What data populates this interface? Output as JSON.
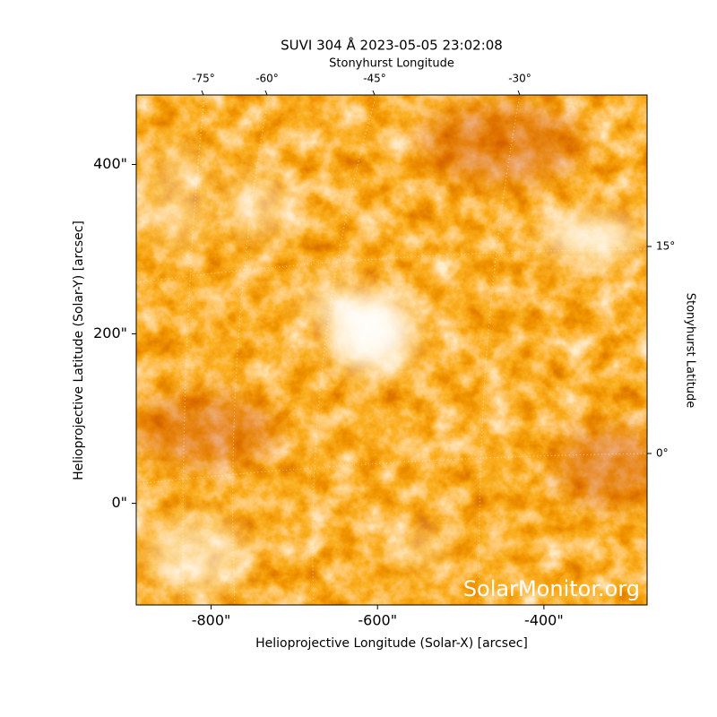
{
  "chart_data": {
    "type": "image",
    "title": "SUVI 304 Å 2023-05-05 23:02:08",
    "x_label": "Helioprojective Longitude (Solar-X) [arcsec]",
    "y_label": "Helioprojective Latitude (Solar-Y) [arcsec]",
    "x2_label": "Stonyhurst Longitude",
    "y2_label": "Stonyhurst Latitude",
    "watermark": "SolarMonitor.org",
    "xlim": [
      -890,
      -276
    ],
    "ylim": [
      -120,
      482
    ],
    "xticks": [
      {
        "value": -800,
        "label": "-800\""
      },
      {
        "value": -600,
        "label": "-600\""
      },
      {
        "value": -400,
        "label": "-400\""
      }
    ],
    "yticks": [
      {
        "value": 0,
        "label": "0\""
      },
      {
        "value": 200,
        "label": "200\""
      },
      {
        "value": 400,
        "label": "400\""
      }
    ],
    "x2ticks": [
      {
        "value": -75,
        "label": "-75°"
      },
      {
        "value": -60,
        "label": "-60°"
      },
      {
        "value": -45,
        "label": "-45°"
      },
      {
        "value": -30,
        "label": "-30°"
      }
    ],
    "y2ticks": [
      {
        "value": 15,
        "label": "15°"
      },
      {
        "value": 0,
        "label": "0°"
      }
    ]
  }
}
